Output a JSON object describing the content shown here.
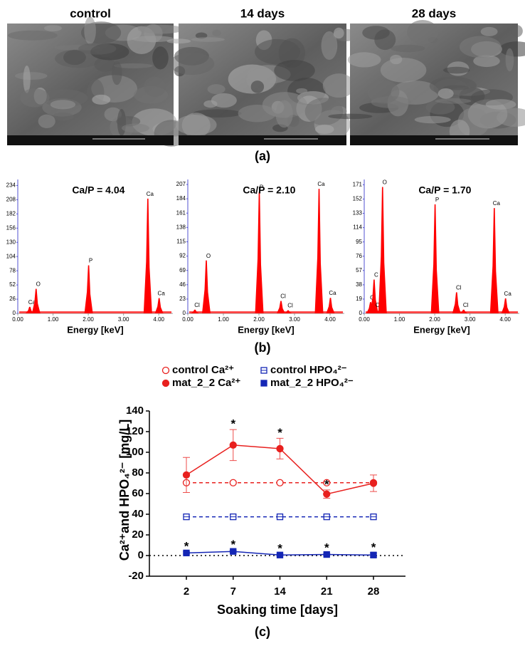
{
  "images": {
    "titles": [
      "control",
      "14 days",
      "28 days"
    ]
  },
  "panel_labels": [
    "(a)",
    "(b)",
    "(c)"
  ],
  "chart_data": [
    {
      "type": "spectrum",
      "title": "Ca/P = 4.04",
      "x_label": "Energy [keV]",
      "color": "#ff0000",
      "x": [
        0.34,
        0.52,
        2.01,
        3.69,
        4.01
      ],
      "values": [
        12,
        45,
        88,
        210,
        28
      ],
      "peak_labels": [
        "Ca",
        "O",
        "P",
        "Ca",
        "Ca"
      ],
      "xlim": [
        0,
        4.4
      ],
      "ylim": [
        0,
        245
      ],
      "xticks": [
        {
          "value": 0,
          "label": "0.00"
        },
        {
          "value": 1,
          "label": "1.00"
        },
        {
          "value": 2,
          "label": "2.00"
        },
        {
          "value": 3,
          "label": "3.00"
        },
        {
          "value": 4,
          "label": "4.00"
        }
      ],
      "yticks": [
        0,
        26,
        52,
        78,
        104,
        130,
        156,
        182,
        208,
        234
      ]
    },
    {
      "type": "spectrum",
      "title": "Ca/P = 2.10",
      "x_label": "Energy [keV]",
      "color": "#ff0000",
      "x": [
        0.2,
        0.52,
        2.01,
        2.62,
        2.82,
        3.69,
        4.01
      ],
      "values": [
        6,
        85,
        195,
        20,
        5,
        200,
        25
      ],
      "peak_labels": [
        "Cl",
        "O",
        "P",
        "Cl",
        "Cl",
        "Ca",
        "Ca"
      ],
      "xlim": [
        0,
        4.4
      ],
      "ylim": [
        0,
        215
      ],
      "xticks": [
        {
          "value": 0,
          "label": "0.00"
        },
        {
          "value": 1,
          "label": "1.00"
        },
        {
          "value": 2,
          "label": "2.00"
        },
        {
          "value": 3,
          "label": "3.00"
        },
        {
          "value": 4,
          "label": "4.00"
        }
      ],
      "yticks": [
        0,
        23,
        46,
        69,
        92,
        115,
        138,
        161,
        184,
        207
      ]
    },
    {
      "type": "spectrum",
      "title": "Ca/P = 1.70",
      "x_label": "Energy [keV]",
      "color": "#ff0000",
      "x": [
        0.18,
        0.28,
        0.36,
        0.52,
        2.01,
        2.62,
        2.82,
        3.69,
        4.01
      ],
      "values": [
        15,
        45,
        5,
        168,
        145,
        28,
        5,
        140,
        20
      ],
      "peak_labels": [
        "Cl",
        "C",
        "Ca",
        "O",
        "P",
        "Cl",
        "Cl",
        "Ca",
        "Ca"
      ],
      "xlim": [
        0,
        4.4
      ],
      "ylim": [
        0,
        178
      ],
      "xticks": [
        {
          "value": 0,
          "label": "0.00"
        },
        {
          "value": 1,
          "label": "1.00"
        },
        {
          "value": 2,
          "label": "2.00"
        },
        {
          "value": 3,
          "label": "3.00"
        },
        {
          "value": 4,
          "label": "4.00"
        }
      ],
      "yticks": [
        0,
        19,
        38,
        57,
        76,
        95,
        114,
        133,
        152,
        171
      ]
    },
    {
      "type": "line",
      "x_label": "Soaking time [days]",
      "y_label": "Ca²⁺and HPO₄²⁻ [mg/L]",
      "categories": [
        "2",
        "7",
        "14",
        "21",
        "28"
      ],
      "ylim": [
        -20,
        140
      ],
      "yticks": [
        -20,
        0,
        20,
        40,
        60,
        80,
        100,
        120,
        140
      ],
      "series": [
        {
          "name": "control Ca²⁺",
          "color": "#e8201e",
          "marker": "circle",
          "filled": false,
          "style": "dashed",
          "values": [
            70.5,
            70.5,
            70.5,
            70.5,
            70.5
          ]
        },
        {
          "name": "mat_2_2 Ca²⁺",
          "color": "#e8201e",
          "marker": "circle",
          "filled": true,
          "style": "solid",
          "values": [
            78,
            107,
            103.5,
            59.5,
            70
          ],
          "errors": [
            17,
            15,
            10,
            4,
            8
          ],
          "significance": [
            null,
            "*",
            "*",
            "*",
            null
          ]
        },
        {
          "name": "control HPO₄²⁻",
          "color": "#1426b5",
          "marker": "square",
          "filled": false,
          "style": "dashed",
          "values": [
            37.5,
            37.5,
            37.5,
            37.5,
            37.5
          ]
        },
        {
          "name": "mat_2_2 HPO₄²⁻",
          "color": "#1426b5",
          "marker": "square",
          "filled": true,
          "style": "solid",
          "values": [
            2.5,
            4,
            0.5,
            1,
            0.5
          ],
          "errors": [
            1,
            1,
            1,
            1,
            2
          ],
          "significance": [
            "*",
            "*",
            "*",
            "*",
            "*"
          ]
        }
      ]
    }
  ]
}
